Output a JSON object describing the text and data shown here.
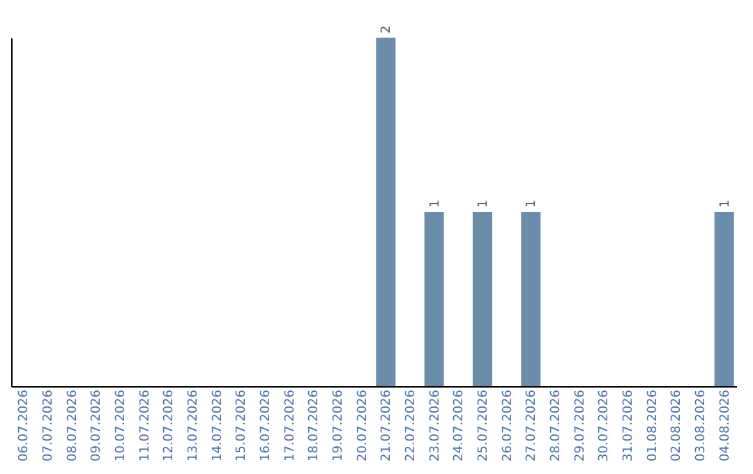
{
  "chart_data": {
    "type": "bar",
    "categories": [
      "06.07.2026",
      "07.07.2026",
      "08.07.2026",
      "09.07.2026",
      "10.07.2026",
      "11.07.2026",
      "12.07.2026",
      "13.07.2026",
      "14.07.2026",
      "15.07.2026",
      "16.07.2026",
      "17.07.2026",
      "18.07.2026",
      "19.07.2026",
      "20.07.2026",
      "21.07.2026",
      "22.07.2026",
      "23.07.2026",
      "24.07.2026",
      "25.07.2026",
      "26.07.2026",
      "27.07.2026",
      "28.07.2026",
      "29.07.2026",
      "30.07.2026",
      "31.07.2026",
      "01.08.2026",
      "02.08.2026",
      "03.08.2026",
      "04.08.2026"
    ],
    "values": [
      null,
      null,
      null,
      null,
      null,
      null,
      null,
      null,
      null,
      null,
      null,
      null,
      null,
      null,
      null,
      2,
      null,
      1,
      null,
      1,
      null,
      1,
      null,
      null,
      null,
      null,
      null,
      null,
      null,
      1
    ],
    "data_labels": true,
    "color": "#6b8cab",
    "grid": false
  }
}
